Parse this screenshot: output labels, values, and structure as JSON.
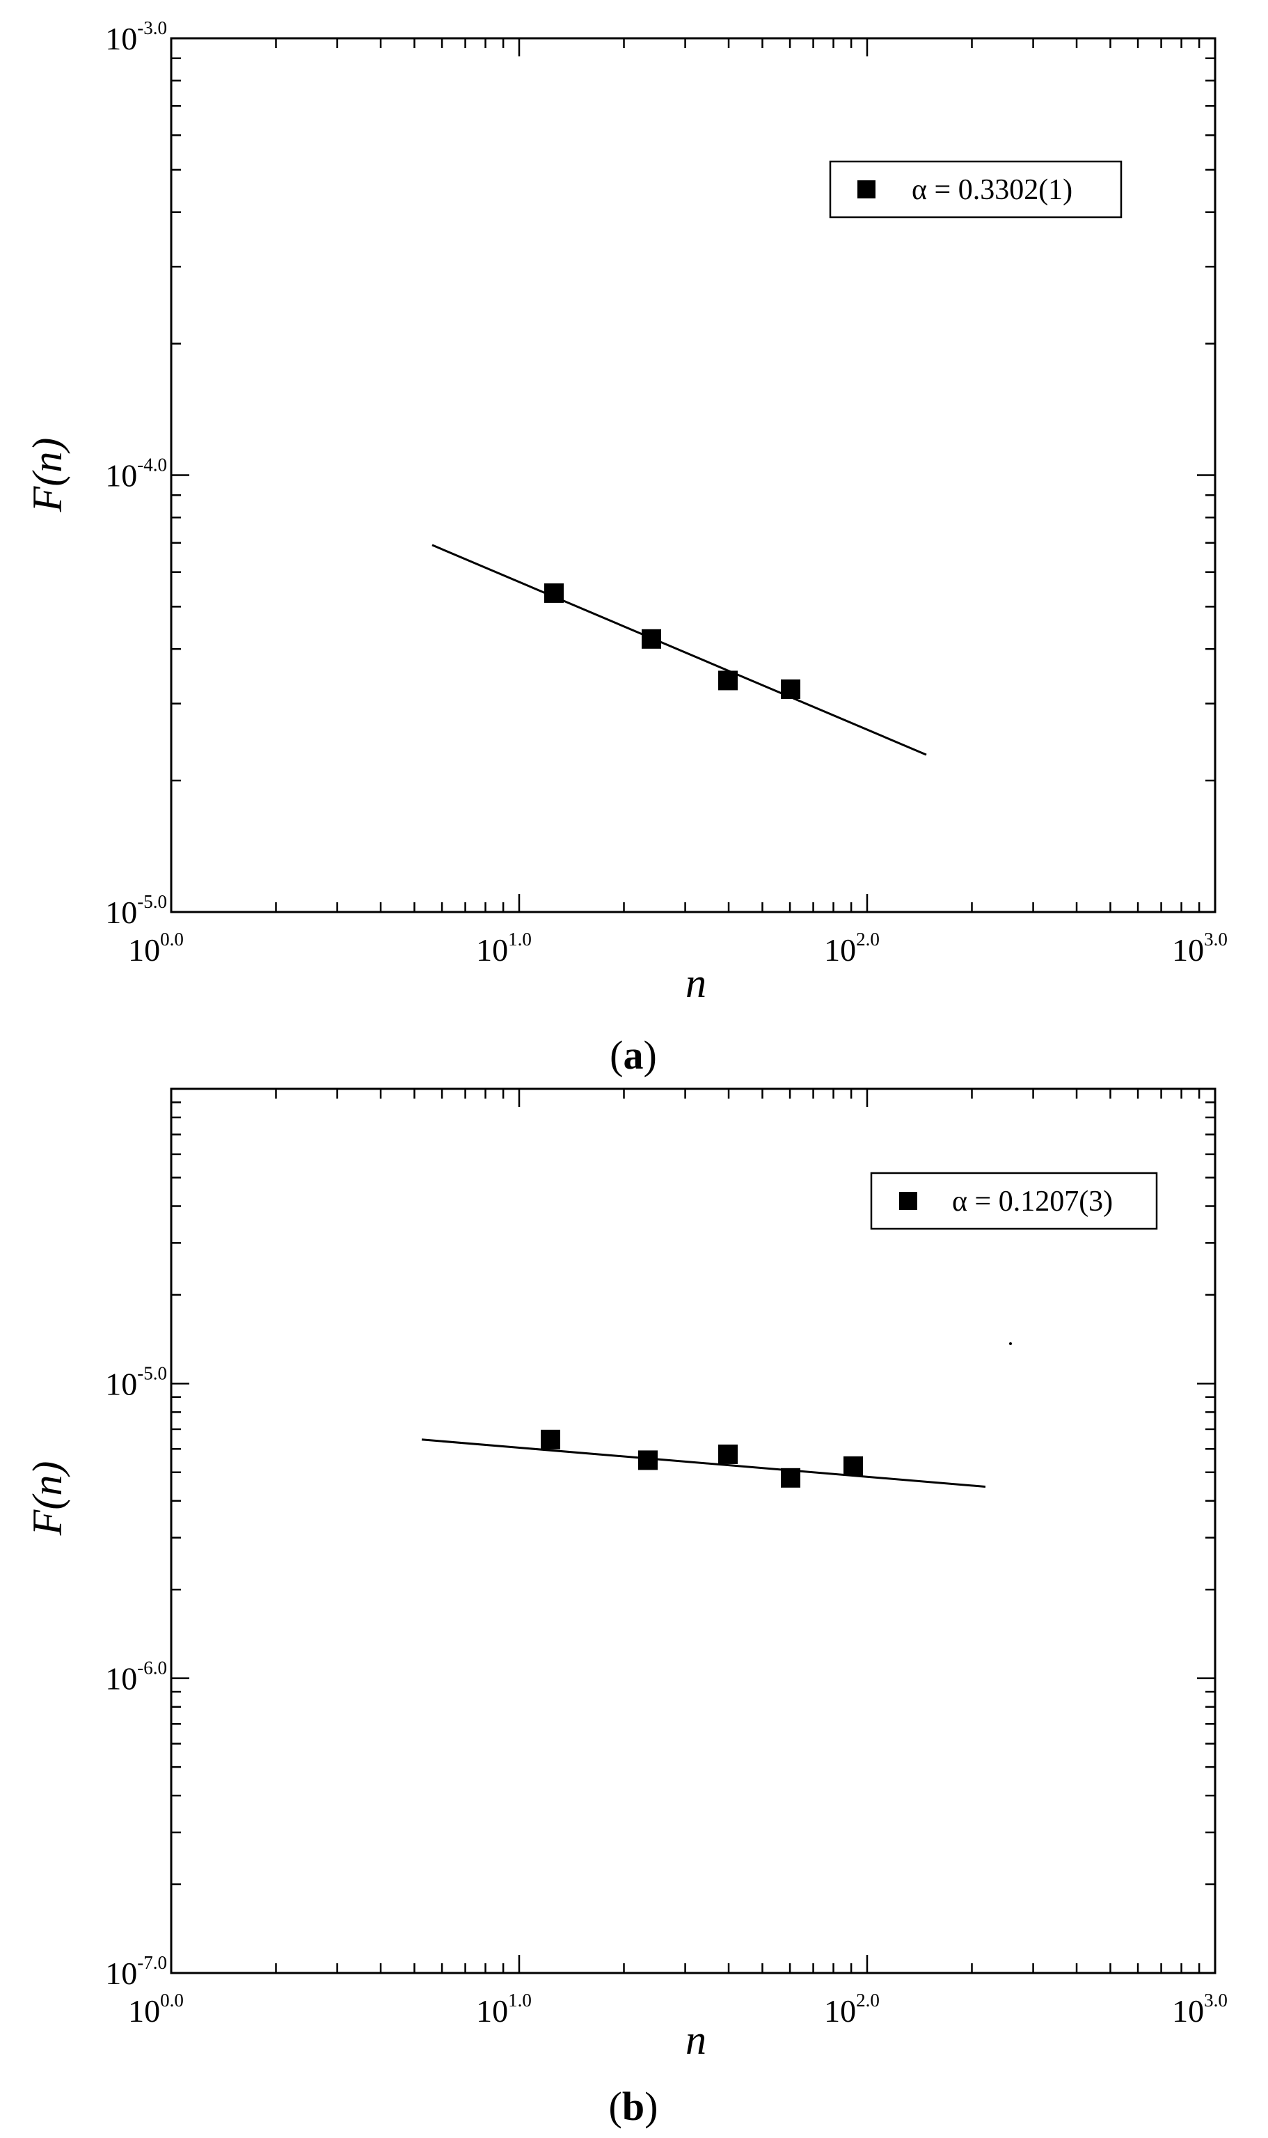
{
  "chart_data": [
    {
      "type": "scatter",
      "panel_label": "a",
      "xlabel": "n",
      "ylabel": "F(n)",
      "xscale": "log",
      "yscale": "log",
      "xlim_exp": [
        0.0,
        3.0
      ],
      "ylim_exp": [
        -5.0,
        -3.0
      ],
      "xtick_labels": [
        {
          "base": "10",
          "exp": "0.0",
          "value": 0.0
        },
        {
          "base": "10",
          "exp": "1.0",
          "value": 1.0
        },
        {
          "base": "10",
          "exp": "2.0",
          "value": 2.0
        },
        {
          "base": "10",
          "exp": "3.0",
          "value": 3.0
        }
      ],
      "ytick_labels": [
        {
          "base": "10",
          "exp": "-5.0",
          "value": -5.0
        },
        {
          "base": "10",
          "exp": "-4.0",
          "value": -4.0
        },
        {
          "base": "10",
          "exp": "-3.0",
          "value": -3.0
        }
      ],
      "series": [
        {
          "name": "α = 0.3302(1)",
          "marker": "square",
          "log10_x": [
            1.1,
            1.38,
            1.6,
            1.78
          ],
          "log10_y": [
            -4.27,
            -4.375,
            -4.47,
            -4.49
          ]
        }
      ],
      "fit_line": {
        "log10_x": [
          0.75,
          2.17
        ],
        "log10_y": [
          -4.16,
          -4.64
        ]
      },
      "legend": {
        "position": "top-right",
        "text": "α = 0.3302(1)"
      }
    },
    {
      "type": "scatter",
      "panel_label": "b",
      "xlabel": "n",
      "ylabel": "F(n)",
      "xscale": "log",
      "yscale": "log",
      "xlim_exp": [
        0.0,
        3.0
      ],
      "ylim_exp": [
        -7.0,
        -4.0
      ],
      "xtick_labels": [
        {
          "base": "10",
          "exp": "0.0",
          "value": 0.0
        },
        {
          "base": "10",
          "exp": "1.0",
          "value": 1.0
        },
        {
          "base": "10",
          "exp": "2.0",
          "value": 2.0
        },
        {
          "base": "10",
          "exp": "3.0",
          "value": 3.0
        }
      ],
      "ytick_labels": [
        {
          "base": "10",
          "exp": "-7.0",
          "value": -7.0
        },
        {
          "base": "10",
          "exp": "-6.0",
          "value": -6.0
        },
        {
          "base": "10",
          "exp": "-5.0",
          "value": -5.0
        }
      ],
      "series": [
        {
          "name": "α = 0.1207(3)",
          "marker": "square",
          "log10_x": [
            1.09,
            1.37,
            1.6,
            1.78,
            1.96
          ],
          "log10_y": [
            -5.19,
            -5.26,
            -5.24,
            -5.32,
            -5.28
          ]
        }
      ],
      "fit_line": {
        "log10_x": [
          0.72,
          2.34
        ],
        "log10_y": [
          -5.19,
          -5.35
        ]
      },
      "legend": {
        "position": "top-right",
        "text": "α = 0.1207(3)"
      }
    }
  ],
  "captions": [
    {
      "open": "(",
      "letter": "a",
      "close": ")"
    },
    {
      "open": "(",
      "letter": "b",
      "close": ")"
    }
  ]
}
